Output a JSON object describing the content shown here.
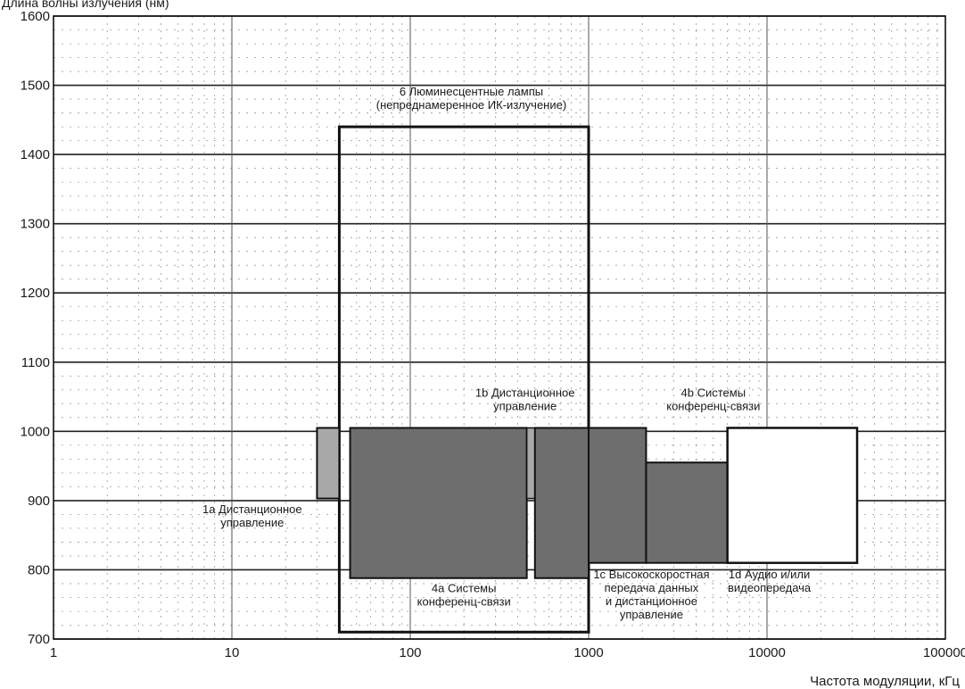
{
  "chart_data": {
    "type": "range-box",
    "xscale": "log",
    "xlim": [
      1,
      100000
    ],
    "ylim": [
      700,
      1600
    ],
    "xlabel": "Частота модуляции, кГц",
    "ylabel_partial": "Длина волны излучения (нм)",
    "x_ticks": [
      {
        "value": 1,
        "label": "1"
      },
      {
        "value": 10,
        "label": "10"
      },
      {
        "value": 100,
        "label": "100"
      },
      {
        "value": 1000,
        "label": "1000"
      },
      {
        "value": 10000,
        "label": "10000"
      },
      {
        "value": 100000,
        "label": "100000"
      }
    ],
    "y_ticks": [
      {
        "value": 700,
        "label": "700"
      },
      {
        "value": 800,
        "label": "800"
      },
      {
        "value": 900,
        "label": "900"
      },
      {
        "value": 1000,
        "label": "1000"
      },
      {
        "value": 1100,
        "label": "1100"
      },
      {
        "value": 1200,
        "label": "1200"
      },
      {
        "value": 1300,
        "label": "1300"
      },
      {
        "value": 1400,
        "label": "1400"
      },
      {
        "value": 1500,
        "label": "1500"
      },
      {
        "value": 1600,
        "label": "1600"
      }
    ],
    "grid": true,
    "regions": [
      {
        "id": "6",
        "x": [
          40,
          1000
        ],
        "y": [
          710,
          1440
        ],
        "fill": "none",
        "stroke_width": 3
      },
      {
        "id": "1a",
        "x": [
          30,
          40
        ],
        "y": [
          903,
          1005
        ],
        "fill": "#a8a8a8",
        "stroke_width": 2
      },
      {
        "id": "4a-1",
        "x": [
          46,
          450
        ],
        "y": [
          788,
          1005
        ],
        "fill": "#6e6e6e",
        "stroke_width": 2
      },
      {
        "id": "1b-strip",
        "x": [
          450,
          500
        ],
        "y": [
          903,
          1005
        ],
        "fill": "#a8a8a8",
        "stroke_width": 1.5
      },
      {
        "id": "4a-2",
        "x": [
          500,
          1000
        ],
        "y": [
          788,
          1005
        ],
        "fill": "#6e6e6e",
        "stroke_width": 2
      },
      {
        "id": "4b-1",
        "x": [
          1000,
          2100
        ],
        "y": [
          810,
          1005
        ],
        "fill": "#6e6e6e",
        "stroke_width": 2
      },
      {
        "id": "4b-2",
        "x": [
          2100,
          6000
        ],
        "y": [
          810,
          955
        ],
        "fill": "#6e6e6e",
        "stroke_width": 2
      },
      {
        "id": "1d",
        "x": [
          6000,
          32000
        ],
        "y": [
          810,
          1005
        ],
        "fill": "#ffffff",
        "stroke_width": 2.5
      }
    ],
    "annotations": [
      {
        "lines": [
          "6 Люминесцентные лампы",
          "(непреднамеренное ИК-излучение)"
        ],
        "x": 220,
        "y": 1485
      },
      {
        "lines": [
          "1b Дистанционное",
          "управление"
        ],
        "x": 440,
        "y": 1050
      },
      {
        "lines": [
          "4b Системы",
          "конференц-связи"
        ],
        "x": 5000,
        "y": 1050
      },
      {
        "lines": [
          "1a Дистанционное",
          "управление"
        ],
        "x": 13,
        "y": 882
      },
      {
        "lines": [
          "4a Системы",
          "конференц-связи"
        ],
        "x": 200,
        "y": 768
      },
      {
        "lines": [
          "1c Высокоскоростная",
          "передача данных",
          "и дистанционное",
          "управление"
        ],
        "x": 2250,
        "y": 788
      },
      {
        "lines": [
          "1d Аудио и/или",
          "видеопередача"
        ],
        "x": 10300,
        "y": 788
      }
    ]
  }
}
